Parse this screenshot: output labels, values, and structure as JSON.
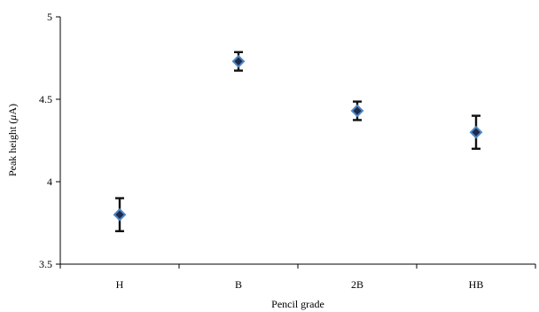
{
  "chart_data": {
    "type": "scatter",
    "title": "",
    "xlabel": "Pencil grade",
    "ylabel_main": "Peak height (",
    "ylabel_mu": "μ",
    "ylabel_end": "A)",
    "categories": [
      "H",
      "B",
      "2B",
      "HB"
    ],
    "values": [
      3.8,
      4.73,
      4.43,
      4.3
    ],
    "errors": [
      0.1,
      0.056,
      0.056,
      0.1
    ],
    "ylim": [
      3.5,
      5
    ],
    "yticks": [
      "3.5",
      "4",
      "4.5",
      "5"
    ],
    "grid": false,
    "legend": "none",
    "marker": "diamond",
    "marker_fill": "#1d2a4a",
    "marker_edge": "#4f86c6",
    "errorbar_color": "#111111"
  }
}
